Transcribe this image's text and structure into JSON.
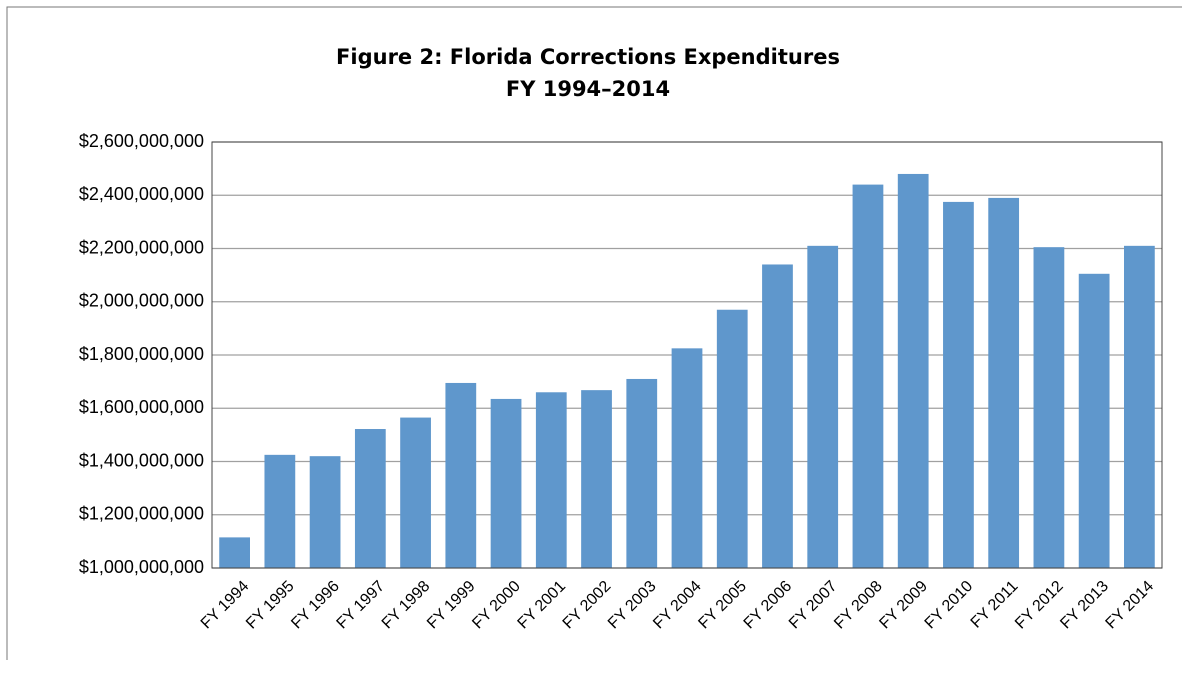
{
  "chart_data": {
    "type": "bar",
    "title": "Figure 2: Florida Corrections Expenditures",
    "subtitle": "FY 1994–2014",
    "categories": [
      "FY 1994",
      "FY 1995",
      "FY 1996",
      "FY 1997",
      "FY 1998",
      "FY 1999",
      "FY 2000",
      "FY 2001",
      "FY 2002",
      "FY 2003",
      "FY 2004",
      "FY 2005",
      "FY 2006",
      "FY 2007",
      "FY 2008",
      "FY 2009",
      "FY 2010",
      "FY 2011",
      "FY 2012",
      "FY 2013",
      "FY 2014"
    ],
    "values": [
      1115000000,
      1425000000,
      1420000000,
      1522000000,
      1565000000,
      1695000000,
      1635000000,
      1660000000,
      1668000000,
      1710000000,
      1825000000,
      1970000000,
      2140000000,
      2210000000,
      2440000000,
      2480000000,
      2375000000,
      2390000000,
      2205000000,
      2105000000,
      2210000000
    ],
    "color": "#5f97cc",
    "ylim": [
      1000000000,
      2600000000
    ],
    "yticks": [
      {
        "value": 1000000000,
        "label": "$1,000,000,000"
      },
      {
        "value": 1200000000,
        "label": "$1,200,000,000"
      },
      {
        "value": 1400000000,
        "label": "$1,400,000,000"
      },
      {
        "value": 1600000000,
        "label": "$1,600,000,000"
      },
      {
        "value": 1800000000,
        "label": "$1,800,000,000"
      },
      {
        "value": 2000000000,
        "label": "$2,000,000,000"
      },
      {
        "value": 2200000000,
        "label": "$2,200,000,000"
      },
      {
        "value": 2400000000,
        "label": "$2,400,000,000"
      },
      {
        "value": 2600000000,
        "label": "$2,600,000,000"
      }
    ],
    "grid": true
  }
}
